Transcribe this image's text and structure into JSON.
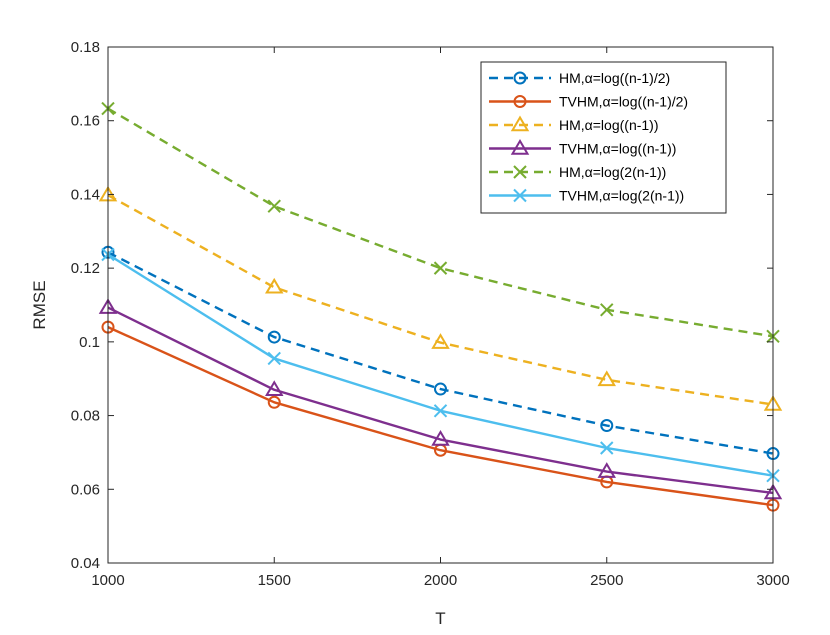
{
  "chart_data": {
    "type": "line",
    "title": "",
    "xlabel": "T",
    "ylabel": "RMSE",
    "xlim": [
      1000,
      3000
    ],
    "ylim": [
      0.04,
      0.18
    ],
    "x": [
      1000,
      1500,
      2000,
      2500,
      3000
    ],
    "xticks": [
      "1000",
      "1500",
      "2000",
      "2500",
      "3000"
    ],
    "yticks": [
      "0.04",
      "0.06",
      "0.08",
      "0.1",
      "0.12",
      "0.14",
      "0.16",
      "0.18"
    ],
    "grid": false,
    "legend_position": "top-right",
    "series": [
      {
        "name": "HM,α=log((n-1)/2)",
        "color": "#0072BD",
        "line": "dashed",
        "marker": "circle",
        "values": [
          0.1243,
          0.1013,
          0.0872,
          0.0773,
          0.0697
        ]
      },
      {
        "name": "TVHM,α=log((n-1)/2)",
        "color": "#D95319",
        "line": "solid",
        "marker": "circle",
        "values": [
          0.104,
          0.0836,
          0.0706,
          0.062,
          0.0557
        ]
      },
      {
        "name": "HM,α=log((n-1))",
        "color": "#EDB120",
        "line": "dashed",
        "marker": "triangle",
        "values": [
          0.1398,
          0.1148,
          0.0998,
          0.0897,
          0.083
        ]
      },
      {
        "name": "TVHM,α=log((n-1))",
        "color": "#7E2F8E",
        "line": "solid",
        "marker": "triangle",
        "values": [
          0.1093,
          0.087,
          0.0735,
          0.0648,
          0.059
        ]
      },
      {
        "name": "HM,α=log(2(n-1))",
        "color": "#77AC30",
        "line": "dashed",
        "marker": "x",
        "values": [
          0.1633,
          0.1368,
          0.12,
          0.1087,
          0.1015
        ]
      },
      {
        "name": "TVHM,α=log(2(n-1))",
        "color": "#4DBEEE",
        "line": "solid",
        "marker": "x",
        "values": [
          0.1237,
          0.0955,
          0.0813,
          0.0712,
          0.0637
        ]
      }
    ]
  }
}
